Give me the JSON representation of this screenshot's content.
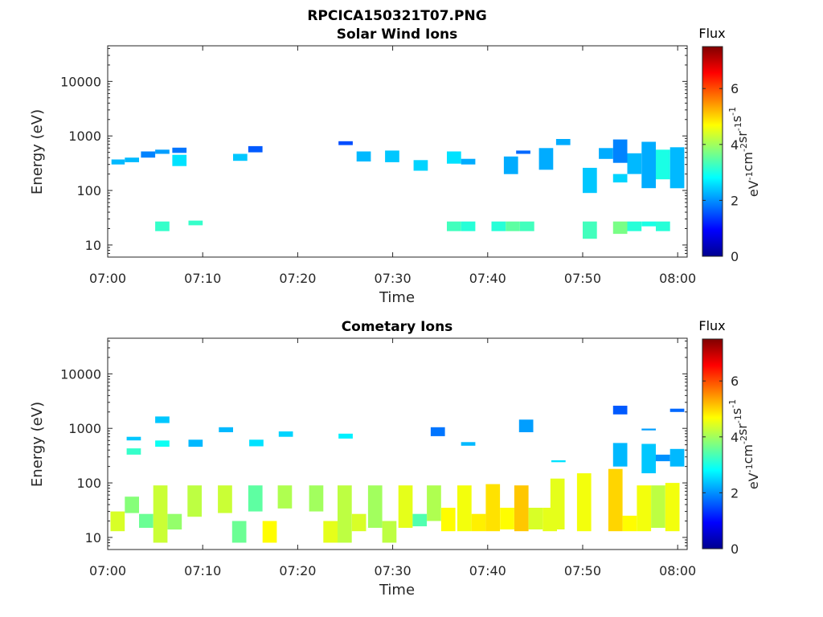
{
  "figure_title": "RPCICA150321T07.PNG",
  "colorbar": {
    "label": "Flux",
    "unit_prefix": "eV",
    "unit_parts": [
      "eV",
      "-1",
      "cm",
      "-2",
      "sr",
      "-1",
      "s",
      "-1"
    ],
    "ticks": [
      0,
      2,
      4,
      6
    ],
    "range": [
      0,
      7.5
    ],
    "colormap": "jet"
  },
  "chart_data": [
    {
      "type": "heatmap",
      "title": "Solar Wind Ions",
      "xlabel": "Time",
      "ylabel": "Energy (eV)",
      "x_ticks": [
        "07:00",
        "07:10",
        "07:20",
        "07:30",
        "07:40",
        "07:50",
        "08:00"
      ],
      "x_range_min": [
        0,
        61
      ],
      "y_scale": "log",
      "y_range": [
        6,
        45000
      ],
      "y_ticks": [
        10,
        100,
        1000,
        10000
      ],
      "cells": [
        [
          0.4,
          1.8,
          300,
          370,
          2.3
        ],
        [
          1.8,
          3.3,
          330,
          400,
          2.3
        ],
        [
          3.5,
          5.0,
          400,
          520,
          1.9
        ],
        [
          5.0,
          6.5,
          470,
          560,
          2.1
        ],
        [
          6.8,
          8.3,
          490,
          610,
          1.8
        ],
        [
          6.8,
          8.3,
          280,
          450,
          2.6
        ],
        [
          13.2,
          14.7,
          350,
          470,
          2.4
        ],
        [
          14.8,
          16.3,
          500,
          650,
          1.6
        ],
        [
          24.3,
          25.8,
          680,
          800,
          1.5
        ],
        [
          26.2,
          27.7,
          340,
          520,
          2.3
        ],
        [
          29.2,
          30.7,
          330,
          540,
          2.4
        ],
        [
          32.2,
          33.7,
          230,
          360,
          2.5
        ],
        [
          35.7,
          37.2,
          310,
          520,
          2.6
        ],
        [
          37.2,
          38.7,
          300,
          380,
          2.2
        ],
        [
          41.7,
          43.2,
          200,
          420,
          2.2
        ],
        [
          43.0,
          44.5,
          470,
          540,
          1.7
        ],
        [
          45.4,
          46.9,
          240,
          600,
          2.2
        ],
        [
          47.2,
          48.7,
          680,
          880,
          2.2
        ],
        [
          50.0,
          51.5,
          90,
          260,
          2.4
        ],
        [
          51.7,
          53.2,
          380,
          600,
          2.2
        ],
        [
          53.2,
          54.7,
          320,
          860,
          1.9
        ],
        [
          53.2,
          54.7,
          140,
          200,
          2.5
        ],
        [
          54.7,
          56.2,
          200,
          480,
          2.3
        ],
        [
          56.2,
          57.7,
          110,
          780,
          2.2
        ],
        [
          57.7,
          59.2,
          160,
          560,
          3.0
        ],
        [
          59.2,
          60.7,
          110,
          620,
          2.3
        ],
        [
          5.0,
          6.5,
          18,
          27,
          3.2
        ],
        [
          8.5,
          10.0,
          23,
          28,
          3.2
        ],
        [
          35.7,
          37.2,
          18,
          27,
          3.3
        ],
        [
          37.2,
          38.7,
          18,
          27,
          3.1
        ],
        [
          40.4,
          41.9,
          18,
          27,
          3.1
        ],
        [
          41.9,
          43.4,
          18,
          27,
          3.5
        ],
        [
          43.4,
          44.9,
          18,
          27,
          3.3
        ],
        [
          50.0,
          51.5,
          13,
          27,
          3.3
        ],
        [
          53.2,
          54.7,
          16,
          27,
          3.7
        ],
        [
          54.7,
          56.2,
          18,
          27,
          3.1
        ],
        [
          56.2,
          57.7,
          22,
          27,
          3.0
        ],
        [
          57.7,
          59.2,
          18,
          27,
          3.1
        ]
      ]
    },
    {
      "type": "heatmap",
      "title": "Cometary Ions",
      "xlabel": "Time",
      "ylabel": "Energy (eV)",
      "x_ticks": [
        "07:00",
        "07:10",
        "07:20",
        "07:30",
        "07:40",
        "07:50",
        "08:00"
      ],
      "x_range_min": [
        0,
        61
      ],
      "y_scale": "log",
      "y_range": [
        6,
        45000
      ],
      "y_ticks": [
        10,
        100,
        1000,
        10000
      ],
      "cells": [
        [
          0.3,
          1.8,
          13,
          30,
          4.4
        ],
        [
          1.8,
          3.3,
          28,
          56,
          3.8
        ],
        [
          3.3,
          4.8,
          15,
          27,
          3.6
        ],
        [
          4.8,
          6.3,
          8,
          90,
          4.3
        ],
        [
          6.3,
          7.8,
          14,
          27,
          3.9
        ],
        [
          8.4,
          9.9,
          24,
          90,
          4.2
        ],
        [
          11.6,
          13.1,
          28,
          90,
          4.3
        ],
        [
          13.1,
          14.6,
          8,
          20,
          3.6
        ],
        [
          14.8,
          16.3,
          30,
          90,
          3.5
        ],
        [
          16.3,
          17.8,
          8,
          20,
          4.7
        ],
        [
          17.9,
          19.4,
          34,
          90,
          4.1
        ],
        [
          21.2,
          22.7,
          30,
          90,
          4.0
        ],
        [
          22.7,
          24.2,
          8,
          20,
          4.5
        ],
        [
          24.2,
          25.7,
          8,
          90,
          4.2
        ],
        [
          25.7,
          27.2,
          13,
          27,
          4.4
        ],
        [
          27.4,
          28.9,
          15,
          90,
          4.0
        ],
        [
          28.9,
          30.4,
          8,
          20,
          4.2
        ],
        [
          30.6,
          32.1,
          15,
          90,
          4.5
        ],
        [
          32.1,
          33.6,
          16,
          27,
          3.4
        ],
        [
          33.6,
          35.1,
          20,
          90,
          4.1
        ],
        [
          35.1,
          36.6,
          13,
          35,
          4.7
        ],
        [
          36.8,
          38.3,
          13,
          90,
          4.6
        ],
        [
          38.3,
          39.8,
          13,
          27,
          4.8
        ],
        [
          39.8,
          41.3,
          13,
          95,
          4.9
        ],
        [
          41.3,
          42.8,
          14,
          35,
          4.7
        ],
        [
          42.8,
          44.3,
          13,
          90,
          5.1
        ],
        [
          44.3,
          45.8,
          14,
          35,
          4.4
        ],
        [
          45.8,
          47.3,
          13,
          35,
          4.5
        ],
        [
          46.6,
          48.1,
          14,
          120,
          4.5
        ],
        [
          49.4,
          50.9,
          13,
          150,
          4.6
        ],
        [
          52.7,
          54.2,
          13,
          180,
          5.0
        ],
        [
          54.2,
          55.7,
          13,
          25,
          4.7
        ],
        [
          55.7,
          57.2,
          13,
          90,
          4.6
        ],
        [
          57.2,
          58.7,
          15,
          90,
          4.2
        ],
        [
          58.7,
          60.2,
          13,
          100,
          4.6
        ],
        [
          2.0,
          3.5,
          600,
          700,
          2.4
        ],
        [
          2.0,
          3.5,
          330,
          430,
          3.2
        ],
        [
          5.0,
          6.5,
          1250,
          1650,
          2.4
        ],
        [
          5.0,
          6.5,
          460,
          600,
          2.9
        ],
        [
          8.5,
          10.0,
          460,
          620,
          2.3
        ],
        [
          11.7,
          13.2,
          850,
          1050,
          2.3
        ],
        [
          14.9,
          16.4,
          470,
          620,
          2.6
        ],
        [
          18.0,
          19.5,
          700,
          880,
          2.5
        ],
        [
          24.3,
          25.8,
          650,
          800,
          2.7
        ],
        [
          34.0,
          35.5,
          720,
          1050,
          1.8
        ],
        [
          37.2,
          38.7,
          480,
          560,
          2.3
        ],
        [
          43.3,
          44.8,
          850,
          1450,
          2.1
        ],
        [
          46.7,
          48.2,
          240,
          260,
          2.6
        ],
        [
          53.2,
          54.7,
          1800,
          2600,
          1.6
        ],
        [
          53.2,
          54.7,
          200,
          540,
          2.3
        ],
        [
          56.2,
          57.7,
          920,
          990,
          2.1
        ],
        [
          56.2,
          57.7,
          150,
          520,
          2.4
        ],
        [
          57.7,
          59.2,
          250,
          330,
          2.0
        ],
        [
          59.2,
          60.7,
          2000,
          2300,
          1.7
        ],
        [
          59.2,
          60.7,
          200,
          420,
          2.3
        ]
      ]
    }
  ]
}
